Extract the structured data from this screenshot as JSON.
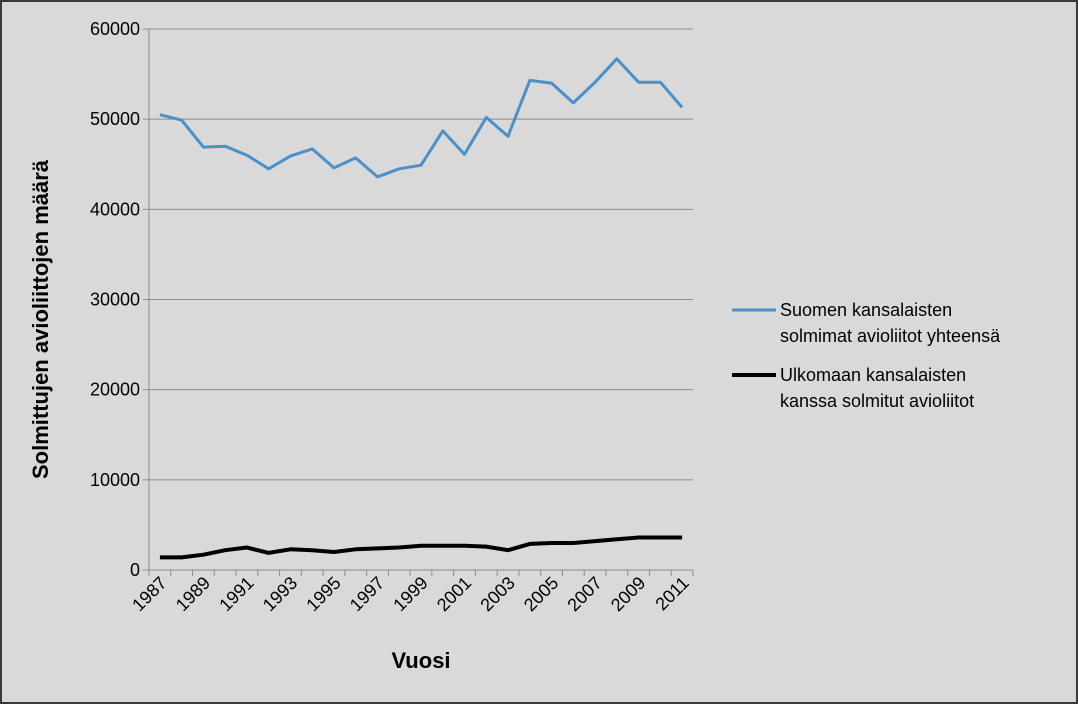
{
  "chart_data": {
    "type": "line",
    "xlabel": "Vuosi",
    "ylabel": "Solmittujen avioliittojen määrä",
    "ylim": [
      0,
      60000
    ],
    "yticks": [
      "0",
      "10000",
      "20000",
      "30000",
      "40000",
      "50000",
      "60000"
    ],
    "x": [
      1987,
      1988,
      1989,
      1990,
      1991,
      1992,
      1993,
      1994,
      1995,
      1996,
      1997,
      1998,
      1999,
      2000,
      2001,
      2002,
      2003,
      2004,
      2005,
      2006,
      2007,
      2008,
      2009,
      2010,
      2011
    ],
    "xtick_labels": [
      "1987",
      "1989",
      "1991",
      "1993",
      "1995",
      "1997",
      "1999",
      "2001",
      "2003",
      "2005",
      "2007",
      "2009",
      "2011"
    ],
    "series": [
      {
        "name": "Suomen kansalaisten solmimat avioliitot yhteensä",
        "legend_lines": [
          "Suomen kansalaisten",
          "solmimat avioliitot yhteensä"
        ],
        "color": "#4a90c9",
        "values": [
          50500,
          49900,
          46900,
          47000,
          46000,
          44500,
          45900,
          46700,
          44600,
          45700,
          43600,
          44500,
          44900,
          48700,
          46100,
          50200,
          48100,
          54300,
          54000,
          51800,
          54100,
          56700,
          54100,
          54100,
          51300
        ]
      },
      {
        "name": "Ulkomaan kansalaisten kanssa solmitut avioliitot",
        "legend_lines": [
          "Ulkomaan kansalaisten",
          "kanssa solmitut avioliitot"
        ],
        "color": "#000000",
        "values": [
          1400,
          1400,
          1700,
          2200,
          2500,
          1900,
          2300,
          2200,
          2000,
          2300,
          2400,
          2500,
          2700,
          2700,
          2700,
          2600,
          2200,
          2900,
          3000,
          3000,
          3200,
          3400,
          3600,
          3600,
          3600
        ]
      }
    ],
    "grid": true,
    "legend_position": "right"
  }
}
